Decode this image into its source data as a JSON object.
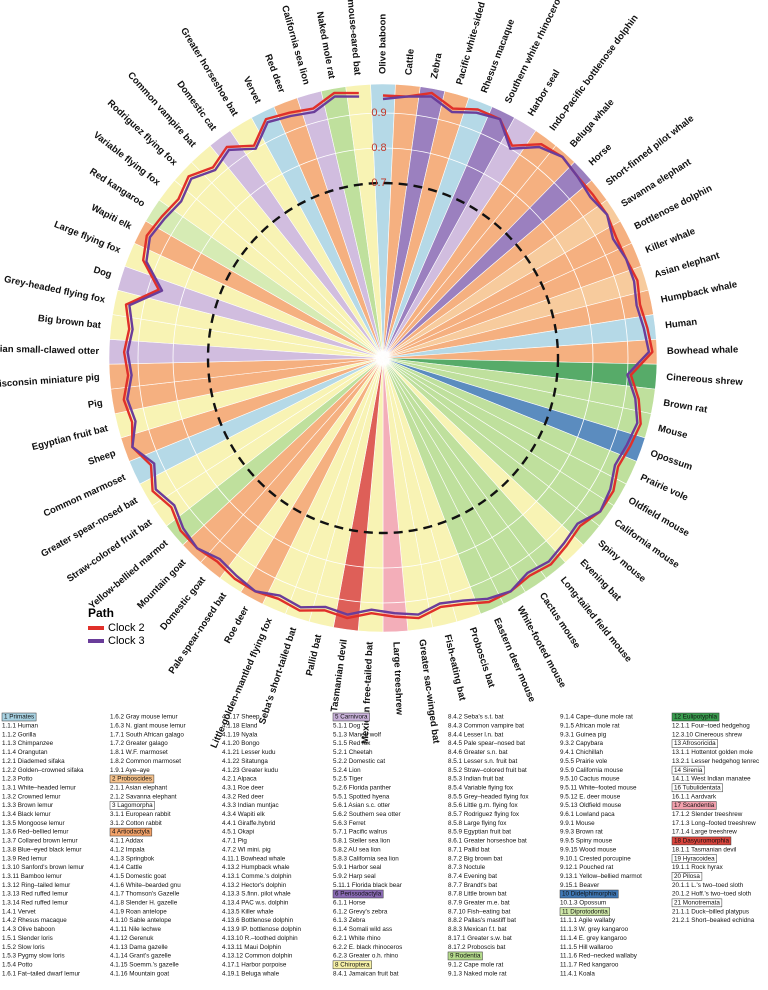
{
  "chart_data": {
    "type": "radial_line",
    "categories": [
      "Olive baboon",
      "Cattle",
      "Zebra",
      "Pacific white-sided dolphin",
      "Rhesus macaque",
      "Southern white rhinoceros",
      "Harbor seal",
      "Indo-Pacific bottlenose dolphin",
      "Beluga whale",
      "Horse",
      "Short-finned pilot whale",
      "Savanna elephant",
      "Bottlenose dolphin",
      "Killer whale",
      "Asian elephant",
      "Humpback whale",
      "Human",
      "Bowhead whale",
      "Cinereous shrew",
      "Brown rat",
      "Mouse",
      "Opossum",
      "Prairie vole",
      "Oldfield mouse",
      "California mouse",
      "Spiny mouse",
      "Evening bat",
      "Long-tailed field mouse",
      "Cactus mouse",
      "White-footed mouse",
      "Eastern deer mouse",
      "Proboscis bat",
      "Fish-eating bat",
      "Greater sac-winged bat",
      "Large treeshrew",
      "Mexican free-tailed bat",
      "Tasmanian devil",
      "Pallid bat",
      "Seba's short-tailed bat",
      "Little golden-mantled flying fox",
      "Roe deer",
      "Pale spear-nosed bat",
      "Domestic goat",
      "Mountain goat",
      "Yellow-bellied marmot",
      "Straw-colored fruit bat",
      "Greater spear-nosed bat",
      "Common marmoset",
      "Sheep",
      "Egyptian fruit bat",
      "Pig",
      "Wisconsin miniature pig",
      "Asian small-clawed otter",
      "Big brown bat",
      "Grey-headed flying fox",
      "Dog",
      "Large flying fox",
      "Wapiti elk",
      "Red kangaroo",
      "Variable flying fox",
      "Rodriguez flying fox",
      "Common vampire bat",
      "Domestic cat",
      "Greater horseshoe bat",
      "Vervet",
      "Red deer",
      "California sea lion",
      "Naked mole rat",
      "Greater mouse-eared bat"
    ],
    "category_colors": [
      "#a9d3e3",
      "#f4a36a",
      "#8a6bb5",
      "#f4a36a",
      "#a9d3e3",
      "#8a6bb5",
      "#c9b2da",
      "#f4a36a",
      "#f4a36a",
      "#8a6bb5",
      "#f4a36a",
      "#f6c38d",
      "#f4a36a",
      "#f4a36a",
      "#f6c38d",
      "#f4a36a",
      "#a9d3e3",
      "#f4a36a",
      "#3a9d4f",
      "#b5db8c",
      "#b5db8c",
      "#3f78b5",
      "#b5db8c",
      "#b5db8c",
      "#b5db8c",
      "#b5db8c",
      "#f7f2a8",
      "#b5db8c",
      "#b5db8c",
      "#b5db8c",
      "#b5db8c",
      "#f7f2a8",
      "#f7f2a8",
      "#f7f2a8",
      "#f2a0ad",
      "#f7f2a8",
      "#d9443c",
      "#f7f2a8",
      "#f7f2a8",
      "#f7f2a8",
      "#f4a36a",
      "#f7f2a8",
      "#f4a36a",
      "#f4a36a",
      "#b5db8c",
      "#f7f2a8",
      "#f7f2a8",
      "#a9d3e3",
      "#f4a36a",
      "#f7f2a8",
      "#f4a36a",
      "#f4a36a",
      "#c9b2da",
      "#f7f2a8",
      "#f7f2a8",
      "#c9b2da",
      "#f7f2a8",
      "#f4a36a",
      "#cfe8a8",
      "#f7f2a8",
      "#f7f2a8",
      "#f7f2a8",
      "#c9b2da",
      "#f7f2a8",
      "#a9d3e3",
      "#f4a36a",
      "#c9b2da",
      "#b5db8c",
      "#f7f2a8"
    ],
    "series": [
      {
        "name": "Clock 2",
        "color": "#e0302a",
        "values": [
          0.95,
          0.95,
          0.97,
          0.94,
          0.96,
          0.96,
          0.91,
          0.96,
          0.97,
          0.96,
          0.96,
          0.96,
          0.95,
          0.95,
          0.96,
          0.95,
          0.96,
          0.97,
          0.91,
          0.94,
          0.96,
          0.95,
          0.94,
          0.96,
          0.96,
          0.94,
          0.95,
          0.96,
          0.95,
          0.96,
          0.96,
          0.94,
          0.93,
          0.95,
          0.94,
          0.93,
          0.95,
          0.94,
          0.96,
          0.95,
          0.96,
          0.96,
          0.95,
          0.96,
          0.96,
          0.94,
          0.96,
          0.93,
          0.96,
          0.94,
          0.95,
          0.93,
          0.94,
          0.93,
          0.95,
          0.87,
          0.94,
          0.96,
          0.95,
          0.94,
          0.96,
          0.93,
          0.95,
          0.91,
          0.96,
          0.95,
          0.94,
          0.97,
          0.96
        ]
      },
      {
        "name": "Clock 3",
        "color": "#6a3d9a",
        "values": [
          0.94,
          0.95,
          0.96,
          0.93,
          0.95,
          0.96,
          0.9,
          0.95,
          0.97,
          0.96,
          0.95,
          0.96,
          0.94,
          0.95,
          0.95,
          0.94,
          0.95,
          0.96,
          0.9,
          0.93,
          0.95,
          0.94,
          0.93,
          0.95,
          0.96,
          0.93,
          0.94,
          0.95,
          0.94,
          0.96,
          0.95,
          0.93,
          0.92,
          0.94,
          0.93,
          0.92,
          0.94,
          0.93,
          0.95,
          0.94,
          0.96,
          0.95,
          0.94,
          0.96,
          0.95,
          0.93,
          0.95,
          0.92,
          0.96,
          0.93,
          0.94,
          0.92,
          0.93,
          0.92,
          0.94,
          0.86,
          0.93,
          0.95,
          0.94,
          0.93,
          0.95,
          0.92,
          0.94,
          0.9,
          0.95,
          0.94,
          0.93,
          0.96,
          0.95
        ]
      }
    ],
    "rlim": [
      0.2,
      1.0
    ],
    "rticks": [
      0.7,
      0.8,
      0.9
    ],
    "legend_title": "Path",
    "legend_position": "lower-left"
  },
  "legend_table": {
    "columns": [
      [
        {
          "group": "1 Primates",
          "color": "#a9d3e3"
        },
        "1.1.1 Human",
        "1.1.2 Gorilla",
        "1.1.3 Chimpanzee",
        "1.1.4 Orangutan",
        "1.2.1 Diademed sifaka",
        "1.2.2 Golden–crowned sifaka",
        "1.2.3 Potto",
        "1.3.1 White–headed lemur",
        "1.3.2 Crowned lemur",
        "1.3.3 Brown lemur",
        "1.3.4 Black lemur",
        "1.3.5 Mongoose lemur",
        "1.3.6 Red–bellied lemur",
        "1.3.7 Collared brown lemur",
        "1.3.8 Blue–eyed black lemur",
        "1.3.9 Red lemur",
        "1.3.10 Sanford's brown lemur",
        "1.3.11 Bamboo lemur",
        "1.3.12 Ring–tailed lemur",
        "1.3.13 Red ruffed lemur",
        "1.3.14 Red ruffed lemur",
        "1.4.1 Vervet",
        "1.4.2 Rhesus macaque",
        "1.4.3 Olive baboon",
        "1.5.1 Slender loris",
        "1.5.2 Slow loris",
        "1.5.3 Pygmy slow loris",
        "1.5.4 Potto",
        "1.6.1 Fat–tailed dwarf lemur"
      ],
      [
        "1.6.2 Gray mouse lemur",
        "1.6.3 N. giant mouse lemur",
        "1.7.1 South African galago",
        "1.7.2 Greater galago",
        "1.8.1 W.F. marmoset",
        "1.8.2 Common marmoset",
        "1.9.1 Aye–aye",
        {
          "group": "2 Proboscides",
          "color": "#f6c38d"
        },
        "2.1.1 Asian elephant",
        "2.1.2 Savanna elephant",
        {
          "group": "3 Lagomorpha",
          "color": "#ffffff"
        },
        "3.1.1 European rabbit",
        "3.1.2 Cotton rabbit",
        {
          "group": "4 Artiodactyla",
          "color": "#f4a36a"
        },
        "4.1.1 Addax",
        "4.1.2 Impala",
        "4.1.3 Springbok",
        "4.1.4 Cattle",
        "4.1.5 Domestic goat",
        "4.1.6 White–bearded gnu",
        "4.1.7 Thomson's Gazelle",
        "4.1.8 Slender H. gazelle",
        "4.1.9 Roan antelope",
        "4.1.10 Sable antelope",
        "4.1.11 Nile lechwe",
        "4.1.12 Gerenuk",
        "4.1.13 Dama gazelle",
        "4.1.14 Grant's gazelle",
        "4.1.15 Soemm.'s gazelle",
        "4.1.16 Mountain goat"
      ],
      [
        "4.1.17 Sheep",
        "4.1.18 Eland",
        "4.1.19 Nyala",
        "4.1.20 Bongo",
        "4.1.21 Lesser kudu",
        "4.1.22 Sitatunga",
        "4.1.23 Greater kudu",
        "4.2.1 Alpaca",
        "4.3.1 Roe deer",
        "4.3.2 Red deer",
        "4.3.3 Indian muntjac",
        "4.3.4 Wapiti elk",
        "4.4.1 Giraffe.hybrid",
        "4.5.1 Okapi",
        "4.7.1 Pig",
        "4.7.2 WI mini. pig",
        "4.11.1 Bowhead whale",
        "4.13.2 Humpback whale",
        "4.13.1 Comme.'s dolphin",
        "4.13.2 Hector's dolphin",
        "4.13.3 S.finn. pilot whale",
        "4.13.4 PAC w.s. dolphin",
        "4.13.5 Killer whale",
        "4.13.6 Bottlenose dolphin",
        "4.13.9 IP. bottlenose dolphin",
        "4.13.10 R.–toothed dolphin",
        "4.13.11 Maui Dolphin",
        "4.13.12 Common dolphin",
        "4.17.1 Harbor porpoise",
        "4.19.1 Beluga whale"
      ],
      [
        {
          "group": "5 Carnivora",
          "color": "#c9b2da"
        },
        "5.1.1 Dog",
        "5.1.3 Maned wolf",
        "5.1.5 Red fox",
        "5.2.1 Cheetah",
        "5.2.2 Domestic cat",
        "5.2.4 Lion",
        "5.2.5 Tiger",
        "5.2.6 Florida panther",
        "5.5.1 Spotted hyena",
        "5.6.1 Asian s.c. otter",
        "5.6.2 Southern sea otter",
        "5.6.3 Ferret",
        "5.7.1 Pacific walrus",
        "5.8.1 Steller sea lion",
        "5.8.2 AU sea lion",
        "5.8.3 California sea lion",
        "5.9.1 Harbor seal",
        "5.9.2 Harp seal",
        "5.11.1 Florida black bear",
        {
          "group": "6 Perissodactyla",
          "color": "#8a6bb5"
        },
        "6.1.1 Horse",
        "6.1.2 Grevy's zebra",
        "6.1.3 Zebra",
        "6.1.4 Somali wild ass",
        "6.2.1 White rhino",
        "6.2.2 E. black rhinoceros",
        "6.2.3 Greater o.h. rhino",
        {
          "group": "8 Chiroptera",
          "color": "#f7f2a8"
        },
        "8.4.1 Jamaican fruit bat"
      ],
      [
        "8.4.2 Seba's s.t. bat",
        "8.4.3 Common vampire bat",
        "8.4.4 Lesser l.n. bat",
        "8.4.5 Pale spear–nosed bat",
        "8.4.6 Greater s.n. bat",
        "8.5.1 Lesser s.n. fruit bat",
        "8.5.2 Straw–colored fruit bat",
        "8.5.3 Indian fruit bat",
        "8.5.4 Variable flying fox",
        "8.5.5 Grey–headed flying fox",
        "8.5.6 Little g.m. flying fox",
        "8.5.7 Rodriguez flying fox",
        "8.5.8 Large flying fox",
        "8.5.9 Egyptian fruit bat",
        "8.6.1 Greater horseshoe bat",
        "8.7.1 Pallid bat",
        "8.7.2 Big brown bat",
        "8.7.3 Noctule",
        "8.7.4 Evening bat",
        "8.7.7 Brandt's bat",
        "8.7.8 Little brown bat",
        "8.7.9 Greater m.e. bat",
        "8.7.10 Fish–eating bat",
        "8.8.2 Pallas's mastiff bat",
        "8.8.3 Mexican f.t. bat",
        "8.17.1 Greater s.w. bat",
        "8.17.2 Proboscis bat",
        {
          "group": "9 Rodentia",
          "color": "#b5db8c"
        },
        "9.1.2 Cape mole rat",
        "9.1.3 Naked mole rat"
      ],
      [
        "9.1.4 Cape–dune mole rat",
        "9.1.5 African mole rat",
        "9.3.1 Guinea pig",
        "9.3.2 Capybara",
        "9.4.1 Chichillah",
        "9.5.5 Prairie vole",
        "9.5.9 California mouse",
        "9.5.10 Cactus mouse",
        "9.5.11 White–footed mouse",
        "9.5.12 E. deer mouse",
        "9.5.13 Oldfield mouse",
        "9.6.1 Lowland paca",
        "9.9.1 Mouse",
        "9.9.3 Brown rat",
        "9.9.5 Spiny mouse",
        "9.9.15 Wood mouse",
        "9.10.1 Crested porcupine",
        "9.12.1 Pouched rat",
        "9.13.1 Yellow–bellied marmot",
        "9.15.1 Beaver",
        {
          "group": "10 Didelphimorphia",
          "color": "#3f78b5"
        },
        "10.1.3 Opossum",
        {
          "group": "11 Diprotodontia",
          "color": "#cfe8a8"
        },
        "11.1.1 Agile wallaby",
        "11.1.3 W. grey kangaroo",
        "11.1.4 E. grey kangaroo",
        "11.1.5 Hill wallaroo",
        "11.1.6 Red–necked wallaby",
        "11.1.7 Red kangaroo",
        "11.4.1 Koala"
      ],
      [
        {
          "group": "12 Eulipotyphla",
          "color": "#3a9d4f"
        },
        "12.1.1 Four–toed hedgehog",
        "12.3.10 Cinereous shrew",
        {
          "group": "13 Afrosoricida",
          "color": "#ffffff"
        },
        "13.1.1 Hottentot golden mole",
        "13.2.1 Lesser hedgehog tenrec",
        {
          "group": "14 Sirenia",
          "color": "#ffffff"
        },
        "14.1.1 West Indian manatee",
        {
          "group": "16 Tubulidentata",
          "color": "#ffffff"
        },
        "16.1.1 Aardvark",
        {
          "group": "17 Scandentia",
          "color": "#f2a0ad"
        },
        "17.1.2 Slender treeshrew",
        "17.1.3 Long–footed treeshrew",
        "17.1.4 Large treeshrew",
        {
          "group": "18 Dasyuromorphia",
          "color": "#d9443c"
        },
        "18.1.1 Tasmanian devil",
        {
          "group": "19 Hyracoidea",
          "color": "#ffffff"
        },
        "19.1.1 Rock hyrax",
        {
          "group": "20 Pilosa",
          "color": "#ffffff"
        },
        "20.1.1 L.'s two–toed sloth",
        "20.1.2 Hoff.'s two–toed sloth",
        {
          "group": "21 Monotremata",
          "color": "#ffffff"
        },
        "21.1.1 Duck–billed platypus",
        "21.2.1 Short–beaked echidna"
      ]
    ]
  }
}
